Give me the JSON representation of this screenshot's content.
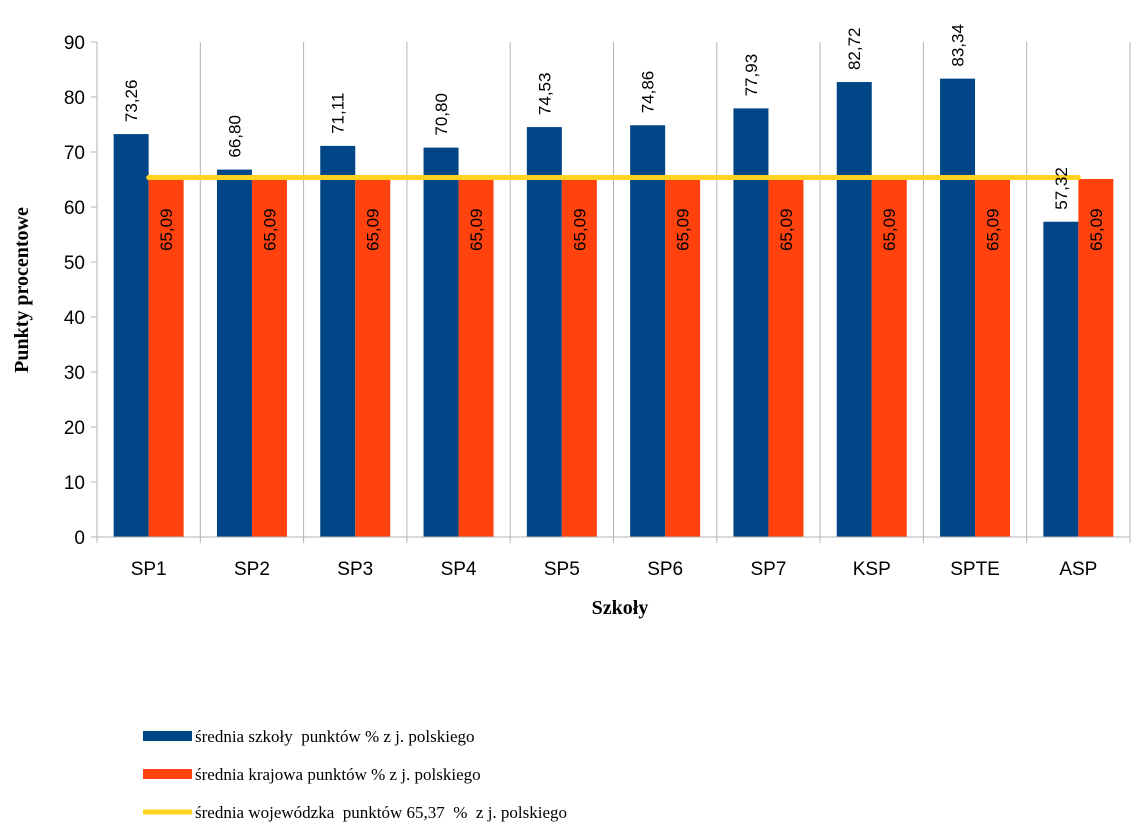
{
  "chart_data": {
    "type": "bar",
    "title": "",
    "xlabel": "Szkoły",
    "ylabel": "Punkty procentowe",
    "ylim": [
      0,
      90
    ],
    "y_ticks": [
      0,
      10,
      20,
      30,
      40,
      50,
      60,
      70,
      80,
      90
    ],
    "grid": "vertical lines between categories",
    "legend_position": "bottom-left",
    "categories": [
      "SP1",
      "SP2",
      "SP3",
      "SP4",
      "SP5",
      "SP6",
      "SP7",
      "KSP",
      "SPTE",
      "ASP"
    ],
    "series": [
      {
        "name": "średnia szkoły  punktów % z j. polskiego",
        "kind": "bar",
        "color": "#004586",
        "values": [
          73.26,
          66.8,
          71.11,
          70.8,
          74.53,
          74.86,
          77.93,
          82.72,
          83.34,
          57.32
        ],
        "labels": [
          "73,26",
          "66,80",
          "71,11",
          "70,80",
          "74,53",
          "74,86",
          "77,93",
          "82,72",
          "83,34",
          "57,32"
        ]
      },
      {
        "name": "średnia krajowa punktów % z j. polskiego",
        "kind": "bar",
        "color": "#ff420e",
        "values": [
          65.09,
          65.09,
          65.09,
          65.09,
          65.09,
          65.09,
          65.09,
          65.09,
          65.09,
          65.09
        ],
        "labels": [
          "65,09",
          "65,09",
          "65,09",
          "65,09",
          "65,09",
          "65,09",
          "65,09",
          "65,09",
          "65,09",
          "65,09"
        ]
      },
      {
        "name": "średnia wojewódzka  punktów 65,37  %  z j. polskiego",
        "kind": "line",
        "color": "#ffd320",
        "value": 65.37
      }
    ]
  }
}
